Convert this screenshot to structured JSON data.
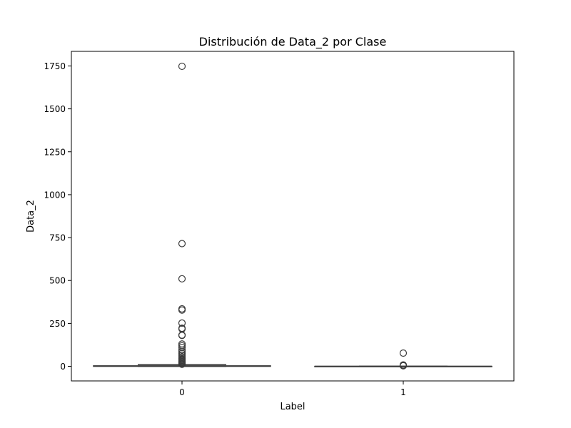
{
  "chart_data": {
    "type": "box",
    "title": "Distribución de Data_2 por Clase",
    "xlabel": "Label",
    "ylabel": "Data_2",
    "categories": [
      "0",
      "1"
    ],
    "ylim": [
      -85,
      1835
    ],
    "yticks": [
      0,
      250,
      500,
      750,
      1000,
      1250,
      1500,
      1750
    ],
    "grid": false,
    "box_color": "#3a3a3a",
    "boxes": [
      {
        "category": "0",
        "whisker_low": 0,
        "q1": 0,
        "median": 1,
        "q3": 3,
        "whisker_high": 10,
        "outliers": [
          1748,
          715,
          510,
          335,
          328,
          252,
          222,
          218,
          182,
          180,
          130,
          120,
          110,
          95,
          85,
          75,
          65,
          55,
          45,
          40,
          35,
          30,
          25,
          20,
          15,
          12
        ]
      },
      {
        "category": "1",
        "whisker_low": 0,
        "q1": 0,
        "median": 0,
        "q3": 0,
        "whisker_high": 0,
        "outliers": [
          77,
          8,
          5,
          3
        ]
      }
    ]
  }
}
